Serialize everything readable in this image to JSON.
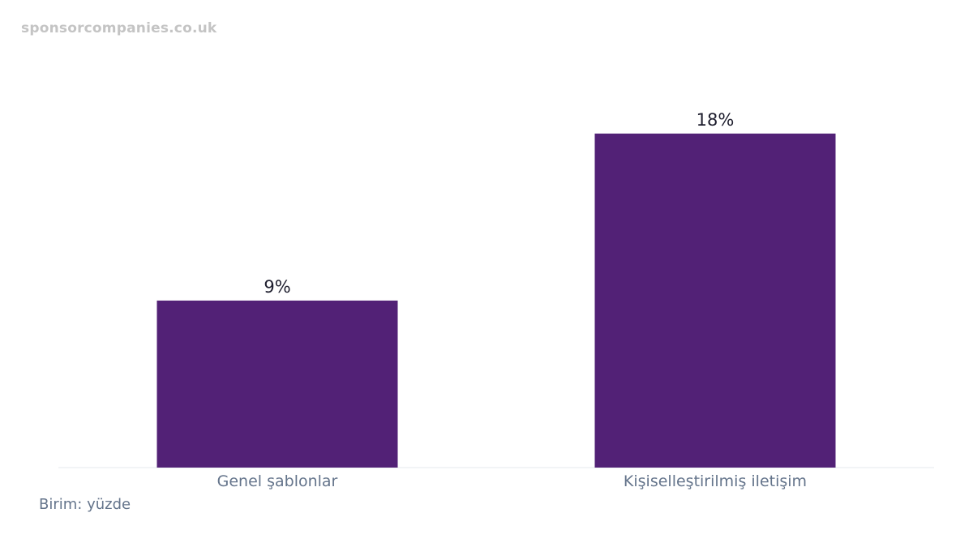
{
  "watermark": "sponsorcompanies.co.uk",
  "unit_note": "Birim: yüzde",
  "colors": {
    "bar": "#522176",
    "value_label": "#1e1e2e",
    "category_label": "#64748b",
    "baseline": "#eef0f3"
  },
  "chart_data": {
    "type": "bar",
    "categories": [
      "Genel şablonlar",
      "Kişiselleştirilmiş iletişim"
    ],
    "values": [
      9,
      18
    ],
    "value_labels": [
      "9%",
      "18%"
    ],
    "title": "",
    "xlabel": "",
    "ylabel": "",
    "ylim": [
      0,
      20
    ],
    "grid": false,
    "legend": "none"
  }
}
